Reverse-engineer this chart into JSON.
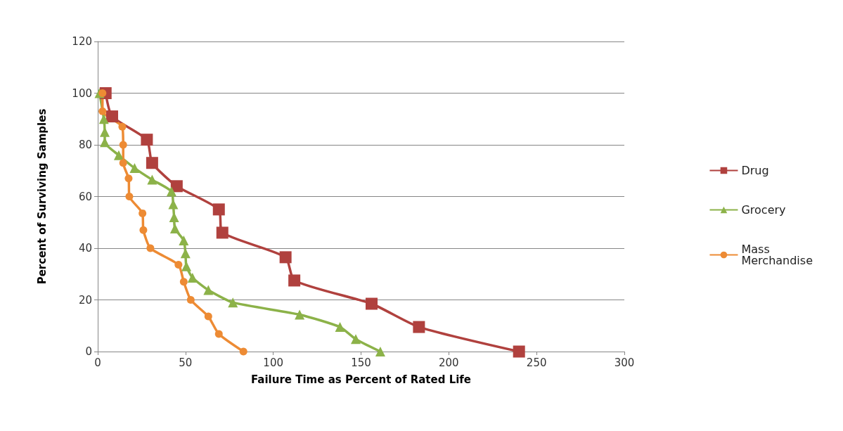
{
  "chart_data": {
    "type": "line",
    "xlabel": "Failure Time as Percent of Rated Life",
    "ylabel": "Percent of Surviving Samples",
    "xlim": [
      0,
      300
    ],
    "xticks": [
      0,
      50,
      100,
      150,
      200,
      250,
      300
    ],
    "ylim": [
      0,
      120
    ],
    "yticks": [
      0,
      20,
      40,
      60,
      80,
      100,
      120
    ],
    "grid": "y",
    "legend": "right",
    "series": [
      {
        "name": "Drug",
        "color": "#b0413e",
        "marker": "square",
        "x": [
          4.5,
          8.2,
          28,
          31,
          45,
          69,
          71,
          107,
          112,
          156,
          183,
          240
        ],
        "values": [
          100,
          91,
          82,
          73,
          64,
          55,
          46,
          36.5,
          27.5,
          18.5,
          9.5,
          0
        ]
      },
      {
        "name": "Grocery",
        "color": "#8cb249",
        "marker": "triangle",
        "x": [
          1,
          3.5,
          4,
          4,
          12,
          21,
          31,
          42,
          43,
          43.5,
          44,
          49,
          50,
          50.5,
          54,
          63,
          77,
          115,
          138,
          147,
          161
        ],
        "values": [
          100,
          90,
          85,
          81,
          76,
          71,
          66.5,
          62,
          57,
          52,
          47.6,
          43,
          38,
          33,
          28.6,
          23.8,
          19,
          14.3,
          9.5,
          4.8,
          0
        ]
      },
      {
        "name": "Mass\nMerchandise",
        "color": "#ed8b34",
        "marker": "circle",
        "x": [
          2.7,
          2.7,
          14,
          14.5,
          14.5,
          17.6,
          18,
          25.5,
          26,
          30,
          46,
          49,
          53,
          63,
          69,
          83
        ],
        "values": [
          100,
          93,
          87,
          80,
          73,
          67,
          60,
          53.5,
          47,
          40,
          33.6,
          27,
          20,
          13.6,
          6.8,
          0
        ]
      }
    ]
  }
}
